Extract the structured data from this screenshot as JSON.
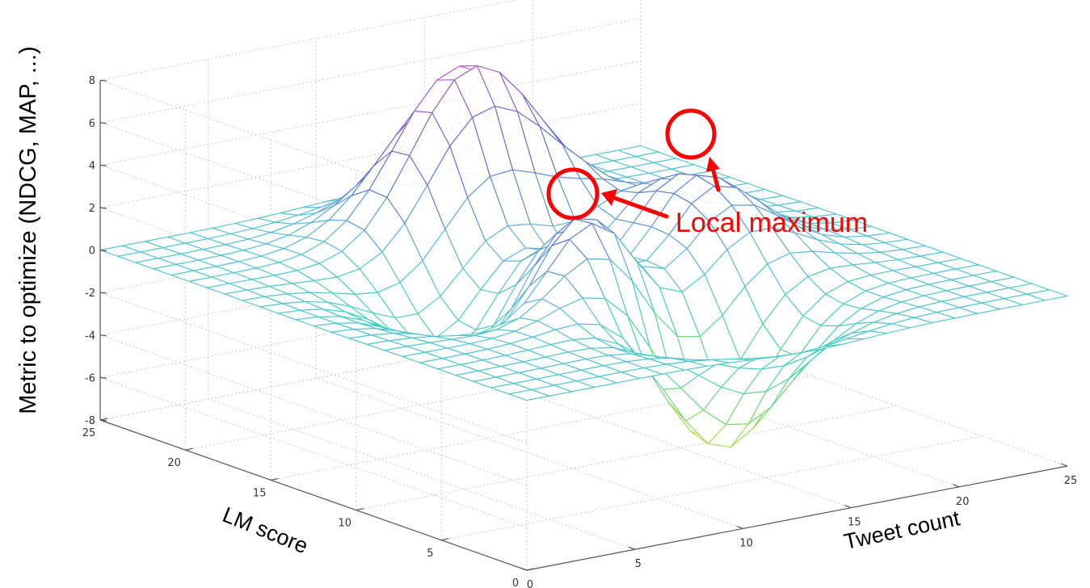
{
  "chart_data": {
    "type": "surface",
    "title": "",
    "zlabel": "Metric to optimize (NDCG, MAP, ...)",
    "xlabel": "Tweet count",
    "ylabel": "LM score",
    "xlim": [
      0,
      25
    ],
    "ylim": [
      0,
      25
    ],
    "zlim": [
      -8,
      8
    ],
    "x_ticks": [
      "0",
      "5",
      "10",
      "15",
      "20",
      "25"
    ],
    "y_ticks": [
      "0",
      "5",
      "10",
      "15",
      "20",
      "25"
    ],
    "z_ticks": [
      "-8",
      "-6",
      "-4",
      "-2",
      "0",
      "2",
      "4",
      "6",
      "8"
    ],
    "grid": true,
    "colormap": "jet (cyan-green-yellow-magenta)",
    "surface": "peaks-like function: global maximum about 8, global minimum about -6.5, two local maxima about 3.8",
    "annotation": {
      "text": "Local maximum",
      "color": "#ff0000",
      "targets": 2
    }
  }
}
